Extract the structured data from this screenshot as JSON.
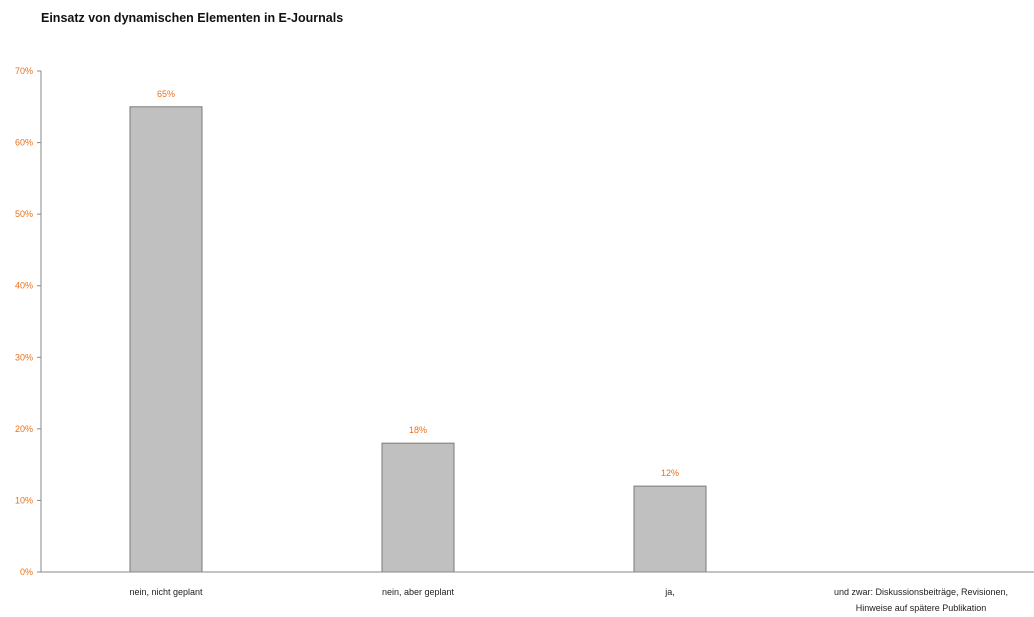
{
  "chart_data": {
    "type": "bar",
    "title": "Einsatz von dynamischen Elementen in E-Journals",
    "xlabel": "",
    "ylabel": "",
    "categories": [
      [
        "nein, nicht geplant"
      ],
      [
        "nein, aber geplant"
      ],
      [
        "ja,"
      ],
      [
        "und zwar: Diskussionsbeiträge, Revisionen,",
        "Hinweise auf spätere Publikation"
      ]
    ],
    "values": [
      65,
      18,
      12,
      null
    ],
    "value_labels": [
      "65%",
      "18%",
      "12%",
      ""
    ],
    "ylim": [
      0,
      70
    ],
    "yticks": [
      0,
      10,
      20,
      30,
      40,
      50,
      60,
      70
    ],
    "ytick_labels": [
      "0%",
      "10%",
      "20%",
      "30%",
      "40%",
      "50%",
      "60%",
      "70%"
    ],
    "grid": false,
    "legend": "none",
    "colors": {
      "bar_fill": "#c0c0c0",
      "bar_stroke": "#7a7a7a",
      "axis": "#8a8a8a",
      "tick_text": "#e8701a",
      "value_text": "#e8701a",
      "category_text": "#222222",
      "title_text": "#111111"
    }
  }
}
